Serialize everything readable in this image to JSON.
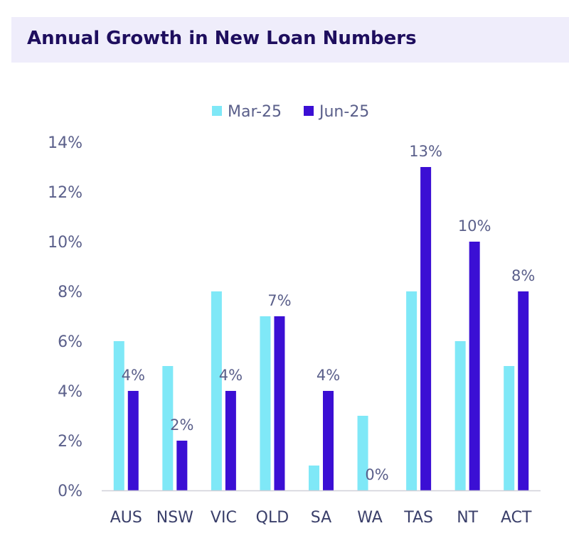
{
  "chart_data": {
    "type": "bar",
    "title": "Annual Growth in New Loan Numbers",
    "categories": [
      "AUS",
      "NSW",
      "VIC",
      "QLD",
      "SA",
      "WA",
      "TAS",
      "NT",
      "ACT"
    ],
    "series": [
      {
        "name": "Mar-25",
        "color": "#7fe8f7",
        "values": [
          6,
          5,
          8,
          7,
          1,
          3,
          8,
          6,
          5
        ]
      },
      {
        "name": "Jun-25",
        "color": "#3b0fd4",
        "values": [
          4,
          2,
          4,
          7,
          4,
          0,
          13,
          10,
          8
        ],
        "data_labels": [
          "4%",
          "2%",
          "4%",
          "7%",
          "4%",
          "0%",
          "13%",
          "10%",
          "8%"
        ]
      }
    ],
    "y_ticks": [
      "0%",
      "2%",
      "4%",
      "6%",
      "8%",
      "10%",
      "12%",
      "14%"
    ],
    "ylim": [
      0,
      14
    ],
    "grid": false,
    "legend_position": "top"
  }
}
